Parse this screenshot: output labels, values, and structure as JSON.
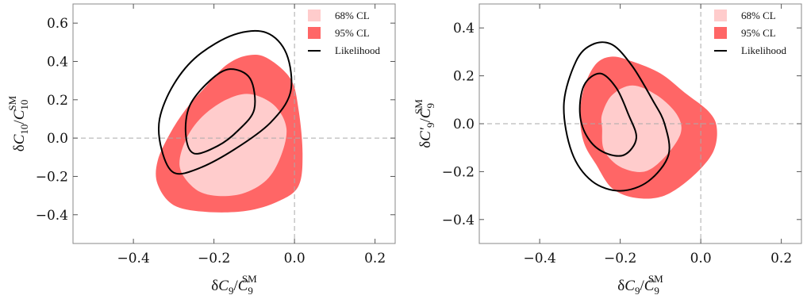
{
  "colors": {
    "cl68": "#ffcccc",
    "cl95": "#ff6666",
    "likelihood": "#000000",
    "zero_line": "#aaaaaa",
    "frame": "#888888"
  },
  "chart_data": [
    {
      "type": "contour",
      "xlabel": {
        "delta": "δ",
        "num": "C",
        "num_sub": "9",
        "den": "C",
        "den_sub": "9",
        "den_sup": "SM"
      },
      "ylabel": {
        "delta": "δ",
        "num": "C",
        "num_sub": "10",
        "den": "C",
        "den_sub": "10",
        "den_sup": "SM"
      },
      "xlim": [
        -0.55,
        0.25
      ],
      "ylim": [
        -0.55,
        0.7
      ],
      "x_ticks": [
        -0.4,
        -0.2,
        0.0,
        0.2
      ],
      "x_tick_labels": [
        "−0.4",
        "−0.2",
        "0.0",
        "0.2"
      ],
      "y_ticks": [
        -0.4,
        -0.2,
        0.0,
        0.2,
        0.4,
        0.6
      ],
      "y_tick_labels": [
        "−0.4",
        "−0.2",
        "0.0",
        "0.2",
        "0.4",
        "0.6"
      ],
      "legend": {
        "position": "top-right",
        "entries": [
          {
            "label": "68% CL",
            "kind": "cl68"
          },
          {
            "label": "95% CL",
            "kind": "cl95"
          },
          {
            "label": "Likelihood",
            "kind": "likelihood"
          }
        ]
      },
      "regions": {
        "cl95": [
          [
            -0.3,
            -0.35
          ],
          [
            -0.22,
            -0.385
          ],
          [
            -0.12,
            -0.38
          ],
          [
            -0.04,
            -0.33
          ],
          [
            0.01,
            -0.25
          ],
          [
            0.02,
            -0.08
          ],
          [
            0.01,
            0.15
          ],
          [
            -0.01,
            0.31
          ],
          [
            -0.07,
            0.42
          ],
          [
            -0.12,
            0.43
          ],
          [
            -0.17,
            0.38
          ],
          [
            -0.22,
            0.27
          ],
          [
            -0.27,
            0.15
          ],
          [
            -0.31,
            0.02
          ],
          [
            -0.34,
            -0.12
          ],
          [
            -0.34,
            -0.24
          ]
        ],
        "cl68": [
          [
            -0.25,
            -0.26
          ],
          [
            -0.2,
            -0.3
          ],
          [
            -0.13,
            -0.29
          ],
          [
            -0.07,
            -0.22
          ],
          [
            -0.035,
            -0.1
          ],
          [
            -0.02,
            0.05
          ],
          [
            -0.05,
            0.17
          ],
          [
            -0.11,
            0.23
          ],
          [
            -0.17,
            0.2
          ],
          [
            -0.23,
            0.11
          ],
          [
            -0.27,
            -0.01
          ],
          [
            -0.285,
            -0.15
          ]
        ],
        "likelihood_outer": [
          [
            -0.33,
            -0.06
          ],
          [
            -0.3,
            -0.18
          ],
          [
            -0.24,
            -0.16
          ],
          [
            -0.15,
            -0.06
          ],
          [
            -0.06,
            0.08
          ],
          [
            -0.01,
            0.24
          ],
          [
            -0.02,
            0.44
          ],
          [
            -0.07,
            0.55
          ],
          [
            -0.15,
            0.54
          ],
          [
            -0.24,
            0.43
          ],
          [
            -0.3,
            0.28
          ],
          [
            -0.335,
            0.1
          ]
        ],
        "likelihood_inner": [
          [
            -0.27,
            0.02
          ],
          [
            -0.25,
            -0.08
          ],
          [
            -0.19,
            -0.04
          ],
          [
            -0.14,
            0.04
          ],
          [
            -0.1,
            0.15
          ],
          [
            -0.11,
            0.31
          ],
          [
            -0.16,
            0.36
          ],
          [
            -0.21,
            0.3
          ],
          [
            -0.26,
            0.17
          ]
        ]
      }
    },
    {
      "type": "contour",
      "xlabel": {
        "delta": "δ",
        "num": "C",
        "num_sub": "9",
        "den": "C",
        "den_sub": "9",
        "den_sup": "SM"
      },
      "ylabel": {
        "delta": "δ",
        "num": "C′",
        "num_sub": "9",
        "den": "C",
        "den_sub": "9",
        "den_sup": "SM"
      },
      "xlim": [
        -0.55,
        0.25
      ],
      "ylim": [
        -0.5,
        0.5
      ],
      "x_ticks": [
        -0.4,
        -0.2,
        0.0,
        0.2
      ],
      "x_tick_labels": [
        "−0.4",
        "−0.2",
        "0.0",
        "0.2"
      ],
      "y_ticks": [
        -0.4,
        -0.2,
        0.0,
        0.2,
        0.4
      ],
      "y_tick_labels": [
        "−0.4",
        "−0.2",
        "0.0",
        "0.2",
        "0.4"
      ],
      "legend": {
        "position": "top-right",
        "entries": [
          {
            "label": "68% CL",
            "kind": "cl68"
          },
          {
            "label": "95% CL",
            "kind": "cl95"
          },
          {
            "label": "Likelihood",
            "kind": "likelihood"
          }
        ]
      },
      "regions": {
        "cl95": [
          [
            -0.26,
            -0.17
          ],
          [
            -0.22,
            -0.27
          ],
          [
            -0.16,
            -0.31
          ],
          [
            -0.09,
            -0.3
          ],
          [
            -0.02,
            -0.22
          ],
          [
            0.03,
            -0.12
          ],
          [
            0.04,
            -0.02
          ],
          [
            0.02,
            0.05
          ],
          [
            -0.04,
            0.13
          ],
          [
            -0.1,
            0.21
          ],
          [
            -0.17,
            0.26
          ],
          [
            -0.22,
            0.28
          ],
          [
            -0.26,
            0.25
          ],
          [
            -0.29,
            0.15
          ],
          [
            -0.3,
            0.03
          ],
          [
            -0.29,
            -0.08
          ]
        ],
        "cl68": [
          [
            -0.245,
            -0.02
          ],
          [
            -0.24,
            -0.11
          ],
          [
            -0.2,
            -0.18
          ],
          [
            -0.14,
            -0.2
          ],
          [
            -0.09,
            -0.14
          ],
          [
            -0.05,
            -0.04
          ],
          [
            -0.06,
            0.04
          ],
          [
            -0.11,
            0.12
          ],
          [
            -0.17,
            0.16
          ],
          [
            -0.22,
            0.12
          ],
          [
            -0.245,
            0.04
          ]
        ],
        "likelihood_outer": [
          [
            -0.34,
            0.08
          ],
          [
            -0.32,
            -0.12
          ],
          [
            -0.27,
            -0.24
          ],
          [
            -0.2,
            -0.28
          ],
          [
            -0.13,
            -0.24
          ],
          [
            -0.08,
            -0.13
          ],
          [
            -0.09,
            0.0
          ],
          [
            -0.12,
            0.1
          ],
          [
            -0.17,
            0.24
          ],
          [
            -0.22,
            0.33
          ],
          [
            -0.27,
            0.33
          ],
          [
            -0.31,
            0.26
          ]
        ],
        "likelihood_inner": [
          [
            -0.3,
            0.04
          ],
          [
            -0.28,
            -0.06
          ],
          [
            -0.24,
            -0.12
          ],
          [
            -0.19,
            -0.13
          ],
          [
            -0.16,
            -0.06
          ],
          [
            -0.18,
            0.04
          ],
          [
            -0.21,
            0.15
          ],
          [
            -0.25,
            0.21
          ],
          [
            -0.29,
            0.16
          ]
        ]
      }
    }
  ]
}
